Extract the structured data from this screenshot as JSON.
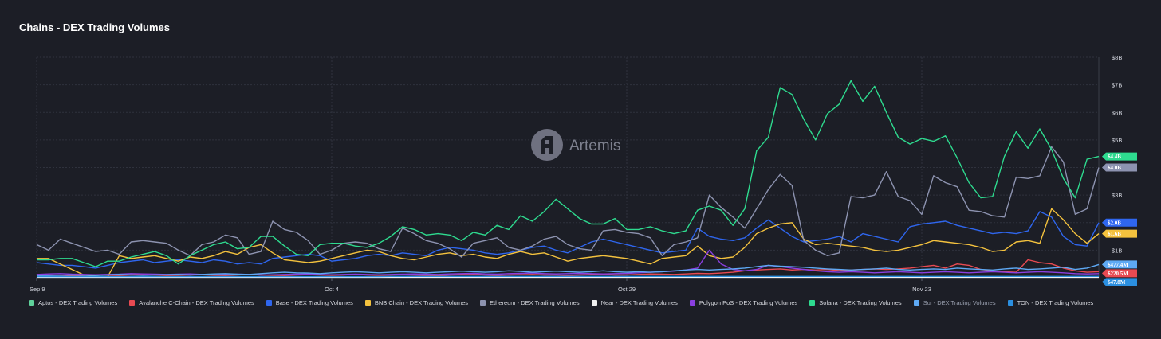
{
  "chart_data": {
    "type": "line",
    "title": "Chains - DEX Trading Volumes",
    "x_tick_labels": [
      "Sep 9",
      "Oct 4",
      "Oct 29",
      "Nov 23"
    ],
    "x_tick_index": [
      0,
      25,
      50,
      75
    ],
    "y_ticks": [
      "$1B",
      "$2B",
      "$3B",
      "$4B",
      "$5B",
      "$6B",
      "$7B",
      "$8B"
    ],
    "ylim": [
      0,
      8
    ],
    "grid": true,
    "watermark": "Artemis",
    "legend_position": "bottom",
    "series": [
      {
        "name": "Aptos - DEX Trading Volumes",
        "color": "#5fd19b",
        "end_label": "",
        "values": [
          0.02,
          0.02,
          0.02,
          0.02,
          0.02,
          0.02,
          0.02,
          0.02,
          0.02,
          0.02,
          0.02,
          0.02,
          0.02,
          0.02,
          0.02,
          0.02,
          0.02,
          0.02,
          0.02,
          0.02,
          0.02,
          0.02,
          0.02,
          0.02,
          0.02,
          0.02,
          0.02,
          0.02,
          0.02,
          0.02,
          0.03,
          0.03,
          0.03,
          0.03,
          0.03,
          0.03,
          0.03,
          0.03,
          0.03,
          0.03,
          0.03,
          0.03,
          0.03,
          0.03,
          0.03,
          0.03,
          0.03,
          0.03,
          0.03,
          0.03,
          0.03,
          0.03,
          0.03,
          0.03,
          0.03,
          0.03,
          0.03,
          0.03,
          0.03,
          0.03,
          0.03,
          0.03,
          0.03,
          0.03,
          0.03,
          0.03,
          0.03,
          0.03,
          0.03,
          0.03,
          0.03,
          0.03,
          0.03,
          0.03,
          0.03,
          0.03,
          0.03,
          0.03,
          0.03,
          0.03,
          0.03,
          0.03,
          0.03,
          0.03,
          0.03,
          0.03,
          0.03,
          0.03,
          0.03,
          0.03,
          0.03
        ]
      },
      {
        "name": "Avalanche C-Chain - DEX Trading Volumes",
        "color": "#e84a52",
        "end_label": "$220.5M",
        "values": [
          0.08,
          0.1,
          0.09,
          0.07,
          0.08,
          0.1,
          0.09,
          0.08,
          0.1,
          0.12,
          0.1,
          0.08,
          0.09,
          0.1,
          0.11,
          0.09,
          0.08,
          0.1,
          0.12,
          0.1,
          0.09,
          0.08,
          0.1,
          0.11,
          0.1,
          0.09,
          0.1,
          0.12,
          0.1,
          0.09,
          0.1,
          0.11,
          0.1,
          0.09,
          0.08,
          0.1,
          0.11,
          0.12,
          0.1,
          0.09,
          0.1,
          0.11,
          0.12,
          0.1,
          0.1,
          0.09,
          0.1,
          0.11,
          0.12,
          0.1,
          0.1,
          0.12,
          0.14,
          0.13,
          0.12,
          0.14,
          0.16,
          0.15,
          0.17,
          0.2,
          0.25,
          0.28,
          0.3,
          0.32,
          0.28,
          0.3,
          0.28,
          0.3,
          0.26,
          0.28,
          0.3,
          0.32,
          0.3,
          0.32,
          0.35,
          0.4,
          0.45,
          0.35,
          0.5,
          0.45,
          0.3,
          0.25,
          0.22,
          0.2,
          0.65,
          0.55,
          0.5,
          0.35,
          0.25,
          0.2,
          0.22
        ]
      },
      {
        "name": "Base - DEX Trading Volumes",
        "color": "#2f66ee",
        "end_label": "$2.0B",
        "values": [
          0.55,
          0.5,
          0.45,
          0.45,
          0.4,
          0.35,
          0.45,
          0.55,
          0.6,
          0.65,
          0.55,
          0.6,
          0.65,
          0.6,
          0.55,
          0.65,
          0.6,
          0.5,
          0.55,
          0.5,
          0.7,
          0.75,
          0.8,
          0.85,
          0.8,
          0.6,
          0.65,
          0.7,
          0.8,
          0.85,
          0.8,
          0.9,
          0.85,
          0.8,
          1.0,
          1.1,
          1.05,
          1.0,
          0.9,
          0.85,
          0.9,
          1.0,
          1.1,
          1.15,
          1.0,
          0.9,
          1.1,
          1.3,
          1.4,
          1.3,
          1.2,
          1.1,
          1.0,
          0.9,
          0.95,
          1.0,
          1.8,
          1.5,
          1.4,
          1.35,
          1.45,
          1.8,
          2.1,
          1.8,
          1.5,
          1.3,
          1.35,
          1.4,
          1.5,
          1.3,
          1.6,
          1.5,
          1.4,
          1.3,
          1.85,
          1.95,
          2.0,
          2.05,
          1.9,
          1.8,
          1.7,
          1.6,
          1.65,
          1.6,
          1.7,
          2.4,
          2.2,
          1.5,
          1.2,
          1.15,
          2.0
        ]
      },
      {
        "name": "BNB Chain - DEX Trading Volumes",
        "color": "#f4c23e",
        "end_label": "$1.6B",
        "values": [
          0.7,
          0.7,
          0.5,
          0.3,
          0.1,
          0.05,
          0.02,
          0.8,
          0.7,
          0.75,
          0.8,
          0.7,
          0.6,
          0.75,
          0.7,
          0.8,
          0.95,
          0.85,
          1.1,
          1.2,
          0.9,
          0.65,
          0.6,
          0.55,
          0.6,
          0.7,
          0.8,
          0.9,
          1.0,
          0.95,
          0.8,
          0.7,
          0.65,
          0.75,
          0.85,
          0.9,
          0.8,
          0.85,
          0.75,
          0.7,
          0.85,
          0.95,
          0.85,
          0.9,
          0.75,
          0.6,
          0.7,
          0.75,
          0.8,
          0.75,
          0.7,
          0.6,
          0.5,
          0.7,
          0.75,
          0.8,
          1.15,
          0.8,
          0.7,
          0.75,
          1.1,
          1.6,
          1.8,
          1.95,
          2.0,
          1.4,
          1.2,
          1.25,
          1.2,
          1.15,
          1.1,
          1.0,
          0.95,
          1.0,
          1.1,
          1.2,
          1.35,
          1.3,
          1.25,
          1.2,
          1.1,
          0.95,
          1.0,
          1.3,
          1.35,
          1.25,
          2.5,
          2.1,
          1.6,
          1.25,
          1.6
        ]
      },
      {
        "name": "Ethereum - DEX Trading Volumes",
        "color": "#8d93b0",
        "end_label": "$4.0B",
        "values": [
          1.2,
          1.0,
          1.4,
          1.25,
          1.1,
          0.95,
          1.0,
          0.85,
          1.3,
          1.35,
          1.3,
          1.25,
          1.0,
          0.8,
          1.2,
          1.3,
          1.55,
          1.45,
          0.85,
          0.95,
          2.05,
          1.75,
          1.65,
          1.35,
          0.85,
          1.0,
          1.25,
          1.3,
          1.25,
          1.05,
          0.95,
          1.8,
          1.6,
          1.35,
          1.25,
          1.05,
          0.75,
          1.25,
          1.35,
          1.45,
          1.1,
          1.0,
          1.15,
          1.4,
          1.5,
          1.2,
          1.05,
          1.0,
          1.7,
          1.75,
          1.65,
          1.6,
          1.45,
          0.8,
          1.2,
          1.3,
          1.45,
          3.0,
          2.55,
          2.2,
          1.8,
          2.5,
          3.2,
          3.75,
          3.35,
          1.35,
          1.0,
          0.8,
          0.9,
          2.95,
          2.9,
          3.0,
          3.85,
          2.95,
          2.8,
          2.3,
          3.7,
          3.45,
          3.3,
          2.45,
          2.4,
          2.25,
          2.2,
          3.65,
          3.6,
          3.7,
          4.75,
          4.2,
          2.3,
          2.5,
          4.0
        ]
      },
      {
        "name": "Near - DEX Trading Volumes",
        "color": "#f0f0f0",
        "end_label": "",
        "values": [
          0.02,
          0.02,
          0.02,
          0.02,
          0.02,
          0.02,
          0.02,
          0.02,
          0.02,
          0.02,
          0.02,
          0.02,
          0.02,
          0.02,
          0.02,
          0.02,
          0.02,
          0.02,
          0.02,
          0.02,
          0.02,
          0.02,
          0.02,
          0.02,
          0.02,
          0.02,
          0.02,
          0.02,
          0.02,
          0.02,
          0.02,
          0.02,
          0.02,
          0.02,
          0.02,
          0.02,
          0.02,
          0.02,
          0.02,
          0.02,
          0.02,
          0.02,
          0.02,
          0.02,
          0.02,
          0.02,
          0.02,
          0.02,
          0.02,
          0.02,
          0.02,
          0.02,
          0.02,
          0.02,
          0.02,
          0.02,
          0.02,
          0.02,
          0.02,
          0.02,
          0.02,
          0.02,
          0.02,
          0.02,
          0.02,
          0.02,
          0.02,
          0.02,
          0.02,
          0.02,
          0.02,
          0.02,
          0.02,
          0.02,
          0.02,
          0.02,
          0.02,
          0.02,
          0.02,
          0.02,
          0.02,
          0.02,
          0.02,
          0.02,
          0.02,
          0.02,
          0.02,
          0.02,
          0.02,
          0.02,
          0.02
        ]
      },
      {
        "name": "Polygon PoS - DEX Trading Volumes",
        "color": "#8a3fe0",
        "end_label": "",
        "values": [
          0.12,
          0.14,
          0.15,
          0.13,
          0.12,
          0.11,
          0.12,
          0.13,
          0.15,
          0.14,
          0.13,
          0.12,
          0.13,
          0.14,
          0.12,
          0.11,
          0.12,
          0.13,
          0.12,
          0.1,
          0.11,
          0.12,
          0.13,
          0.14,
          0.12,
          0.11,
          0.12,
          0.13,
          0.12,
          0.11,
          0.12,
          0.13,
          0.14,
          0.13,
          0.12,
          0.14,
          0.15,
          0.16,
          0.14,
          0.13,
          0.15,
          0.16,
          0.17,
          0.15,
          0.14,
          0.15,
          0.16,
          0.15,
          0.14,
          0.15,
          0.16,
          0.18,
          0.2,
          0.22,
          0.24,
          0.28,
          0.35,
          1.0,
          0.5,
          0.3,
          0.25,
          0.3,
          0.45,
          0.4,
          0.35,
          0.3,
          0.25,
          0.22,
          0.2,
          0.22,
          0.2,
          0.18,
          0.2,
          0.22,
          0.2,
          0.18,
          0.2,
          0.22,
          0.2,
          0.18,
          0.2,
          0.22,
          0.2,
          0.18,
          0.2,
          0.22,
          0.2,
          0.18,
          0.15,
          0.14,
          0.15
        ]
      },
      {
        "name": "Solana - DEX Trading Volumes",
        "color": "#2edb8f",
        "end_label": "$4.4B",
        "values": [
          0.65,
          0.65,
          0.7,
          0.7,
          0.55,
          0.4,
          0.6,
          0.6,
          0.75,
          0.85,
          0.95,
          0.8,
          0.5,
          0.8,
          1.0,
          1.2,
          1.3,
          1.05,
          1.1,
          1.5,
          1.5,
          1.15,
          0.85,
          0.8,
          1.2,
          1.25,
          1.25,
          1.15,
          1.1,
          1.25,
          1.5,
          1.85,
          1.75,
          1.55,
          1.6,
          1.55,
          1.35,
          1.65,
          1.55,
          1.9,
          1.75,
          2.25,
          2.05,
          2.4,
          2.85,
          2.5,
          2.15,
          1.95,
          1.95,
          2.15,
          1.75,
          1.75,
          1.85,
          1.7,
          1.6,
          1.7,
          2.45,
          2.6,
          2.45,
          1.9,
          2.5,
          4.6,
          5.1,
          6.9,
          6.65,
          5.75,
          5.0,
          5.95,
          6.3,
          7.15,
          6.4,
          6.95,
          6.0,
          5.1,
          4.85,
          5.05,
          4.95,
          5.15,
          4.35,
          3.45,
          2.9,
          2.95,
          4.4,
          5.3,
          4.7,
          5.4,
          4.65,
          3.6,
          2.9,
          4.3,
          4.4
        ]
      },
      {
        "name": "Sui - DEX Trading Volumes",
        "color": "#5ea9f4",
        "end_label": "$477.4M",
        "values": [
          0.08,
          0.08,
          0.09,
          0.1,
          0.09,
          0.08,
          0.1,
          0.12,
          0.1,
          0.09,
          0.1,
          0.11,
          0.12,
          0.1,
          0.12,
          0.14,
          0.15,
          0.13,
          0.12,
          0.15,
          0.18,
          0.2,
          0.18,
          0.17,
          0.15,
          0.18,
          0.2,
          0.22,
          0.2,
          0.18,
          0.2,
          0.22,
          0.2,
          0.18,
          0.2,
          0.22,
          0.24,
          0.22,
          0.2,
          0.22,
          0.25,
          0.23,
          0.2,
          0.22,
          0.24,
          0.22,
          0.2,
          0.22,
          0.25,
          0.22,
          0.2,
          0.22,
          0.2,
          0.22,
          0.25,
          0.28,
          0.3,
          0.28,
          0.3,
          0.32,
          0.35,
          0.4,
          0.45,
          0.42,
          0.4,
          0.38,
          0.35,
          0.32,
          0.3,
          0.28,
          0.3,
          0.32,
          0.35,
          0.3,
          0.28,
          0.3,
          0.32,
          0.3,
          0.35,
          0.32,
          0.3,
          0.28,
          0.32,
          0.35,
          0.3,
          0.32,
          0.35,
          0.38,
          0.3,
          0.35,
          0.48
        ]
      },
      {
        "name": "TON - DEX Trading Volumes",
        "color": "#2b8fe0",
        "end_label": "$47.8M",
        "values": [
          0.04,
          0.04,
          0.04,
          0.04,
          0.04,
          0.04,
          0.04,
          0.04,
          0.04,
          0.04,
          0.04,
          0.04,
          0.04,
          0.04,
          0.04,
          0.04,
          0.04,
          0.04,
          0.04,
          0.04,
          0.04,
          0.04,
          0.04,
          0.04,
          0.04,
          0.04,
          0.04,
          0.04,
          0.04,
          0.04,
          0.05,
          0.05,
          0.05,
          0.05,
          0.05,
          0.05,
          0.05,
          0.05,
          0.05,
          0.05,
          0.05,
          0.05,
          0.05,
          0.05,
          0.05,
          0.05,
          0.05,
          0.05,
          0.05,
          0.05,
          0.05,
          0.05,
          0.05,
          0.05,
          0.05,
          0.05,
          0.05,
          0.05,
          0.05,
          0.05,
          0.05,
          0.05,
          0.05,
          0.05,
          0.05,
          0.05,
          0.05,
          0.05,
          0.05,
          0.05,
          0.05,
          0.05,
          0.05,
          0.05,
          0.05,
          0.05,
          0.05,
          0.05,
          0.05,
          0.05,
          0.05,
          0.05,
          0.05,
          0.05,
          0.05,
          0.05,
          0.05,
          0.05,
          0.05,
          0.05,
          0.05
        ]
      }
    ]
  },
  "legend": {
    "items": [
      {
        "label": "Aptos - DEX Trading Volumes",
        "color": "#5fd19b",
        "muted": false
      },
      {
        "label": "Avalanche C-Chain - DEX Trading Volumes",
        "color": "#e84a52",
        "muted": false
      },
      {
        "label": "Base - DEX Trading Volumes",
        "color": "#2f66ee",
        "muted": false
      },
      {
        "label": "BNB Chain - DEX Trading Volumes",
        "color": "#f4c23e",
        "muted": false
      },
      {
        "label": "Ethereum - DEX Trading Volumes",
        "color": "#8d93b0",
        "muted": false
      },
      {
        "label": "Near - DEX Trading Volumes",
        "color": "#f0f0f0",
        "muted": false
      },
      {
        "label": "Polygon PoS - DEX Trading Volumes",
        "color": "#8a3fe0",
        "muted": false
      },
      {
        "label": "Solana - DEX Trading Volumes",
        "color": "#2edb8f",
        "muted": false
      },
      {
        "label": "Sui - DEX Trading Volumes",
        "color": "#5ea9f4",
        "muted": true
      },
      {
        "label": "TON - DEX Trading Volumes",
        "color": "#2b8fe0",
        "muted": false
      }
    ]
  }
}
